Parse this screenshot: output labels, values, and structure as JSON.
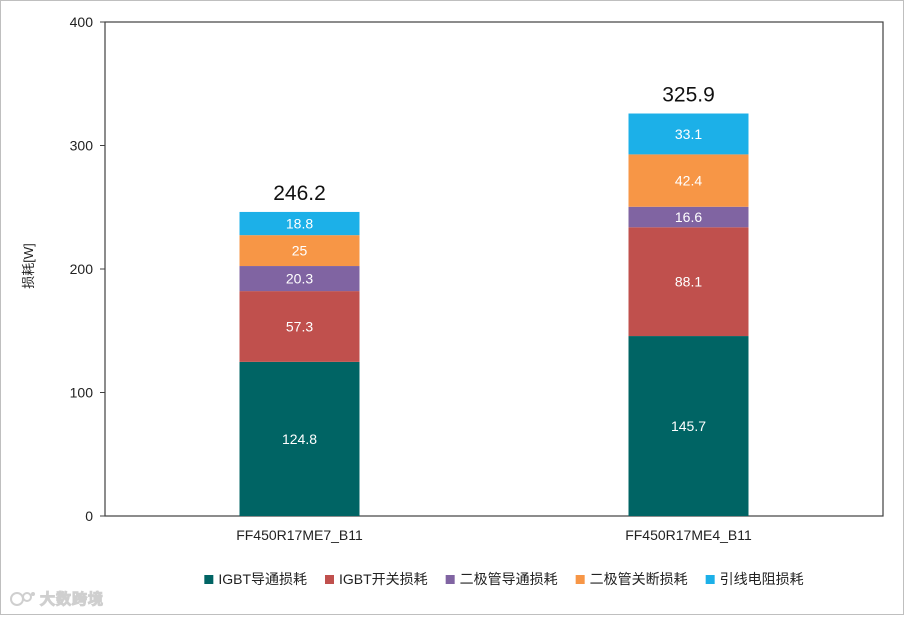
{
  "chart_data": {
    "type": "bar",
    "stacked": true,
    "ylabel": "损耗[W]",
    "ylim": [
      0,
      400
    ],
    "yticks": [
      0,
      100,
      200,
      300,
      400
    ],
    "grid": false,
    "legend_position": "bottom",
    "categories": [
      "FF450R17ME7_B11",
      "FF450R17ME4_B11"
    ],
    "series": [
      {
        "name": "IGBT导通损耗",
        "color": "#006464",
        "values": [
          124.8,
          145.7
        ],
        "labels": [
          "124.8",
          "145.7"
        ]
      },
      {
        "name": "IGBT开关损耗",
        "color": "#c0504d",
        "values": [
          57.3,
          88.1
        ],
        "labels": [
          "57.3",
          "88.1"
        ]
      },
      {
        "name": "二极管导通损耗",
        "color": "#8064a2",
        "values": [
          20.3,
          16.6
        ],
        "labels": [
          "20.3",
          "16.6"
        ]
      },
      {
        "name": "二极管关断损耗",
        "color": "#f79646",
        "values": [
          25,
          42.4
        ],
        "labels": [
          "25",
          "42.4"
        ]
      },
      {
        "name": "引线电阻损耗",
        "color": "#1cb0e8",
        "values": [
          18.8,
          33.1
        ],
        "labels": [
          "18.8",
          "33.1"
        ]
      }
    ],
    "totals": [
      "246.2",
      "325.9"
    ]
  },
  "watermark": {
    "icon": "logo-icon",
    "text": "大数跨境"
  }
}
